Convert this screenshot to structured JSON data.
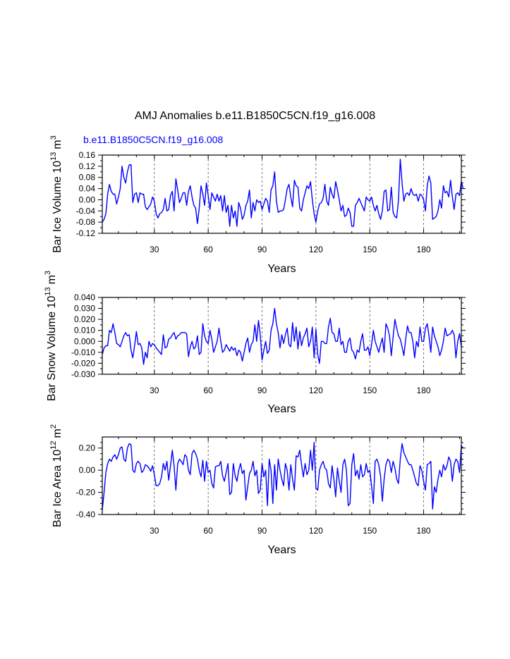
{
  "figure": {
    "title": "AMJ Anomalies b.e11.B1850C5CN.f19_g16.008",
    "subtitle": "b.e11.B1850C5CN.f19_g16.008",
    "line_color": "#0000ff",
    "grid_color": "#555555"
  },
  "chart_data": [
    {
      "type": "line",
      "title": "",
      "xlabel": "Years",
      "ylabel_main": "Bar Ice Volume 10",
      "ylabel_exp": "13",
      "ylabel_unit": "m",
      "ylabel_unit_exp": "3",
      "xlim": [
        1,
        201
      ],
      "ylim": [
        -0.12,
        0.16
      ],
      "xticks": [
        30,
        60,
        90,
        120,
        150,
        180
      ],
      "yticks": [
        -0.12,
        -0.08,
        -0.04,
        0.0,
        0.04,
        0.08,
        0.12,
        0.16
      ],
      "ytick_labels": [
        "-0.12",
        "-0.08",
        "-0.04",
        "0.00",
        "0.04",
        "0.08",
        "0.12",
        "0.16"
      ],
      "yminor": [
        -0.1,
        -0.06,
        -0.02,
        0.02,
        0.06,
        0.1,
        0.14
      ],
      "grid_x": [
        30,
        60,
        90,
        120,
        150,
        180
      ],
      "series": [
        {
          "name": "b.e11.B1850C5CN.f19_g16.008",
          "x_start": 1,
          "values": [
            -0.08,
            -0.07,
            -0.05,
            0.02,
            0.055,
            0.03,
            0.02,
            0.02,
            -0.015,
            0.01,
            0.04,
            0.12,
            0.08,
            0.06,
            0.1,
            0.125,
            0.125,
            -0.01,
            0.02,
            0.025,
            -0.01,
            0.025,
            0.02,
            0.02,
            -0.025,
            -0.035,
            -0.025,
            -0.015,
            0.01,
            -0.005,
            -0.05,
            -0.065,
            -0.05,
            -0.045,
            -0.035,
            0.005,
            -0.04,
            -0.035,
            0.015,
            0.03,
            -0.04,
            0.075,
            0.035,
            -0.01,
            0.005,
            0.025,
            0.025,
            -0.02,
            0.03,
            0.05,
            0.01,
            -0.02,
            -0.03,
            -0.085,
            -0.03,
            0.05,
            0.02,
            -0.02,
            0.06,
            0.015,
            -0.035,
            0.025,
            0.01,
            -0.005,
            0.02,
            -0.005,
            0.015,
            -0.04,
            0.015,
            -0.045,
            -0.02,
            -0.095,
            -0.02,
            -0.065,
            -0.04,
            -0.095,
            -0.01,
            -0.03,
            -0.07,
            -0.055,
            -0.02,
            -0.005,
            0.035,
            -0.065,
            -0.01,
            -0.04,
            0.0,
            -0.01,
            -0.005,
            -0.035,
            -0.015,
            0.005,
            -0.005,
            -0.045,
            0.035,
            0.05,
            0.1,
            -0.005,
            -0.045,
            -0.04,
            -0.04,
            -0.035,
            0.0,
            0.04,
            0.055,
            0.01,
            -0.025,
            0.07,
            0.05,
            0.045,
            -0.03,
            -0.04,
            0.0,
            0.025,
            0.05,
            0.04,
            0.065,
            0.0,
            -0.05,
            -0.08,
            -0.04,
            -0.015,
            -0.01,
            0.005,
            0.055,
            -0.005,
            -0.02,
            0.045,
            0.02,
            0.005,
            0.065,
            0.035,
            0.0,
            -0.04,
            -0.02,
            -0.06,
            -0.055,
            -0.03,
            -0.045,
            -0.095,
            -0.095,
            -0.02,
            -0.01,
            0.005,
            -0.01,
            -0.025,
            -0.04,
            0.01,
            0.0,
            -0.005,
            0.01,
            -0.02,
            -0.04,
            -0.02,
            -0.05,
            -0.07,
            -0.04,
            0.03,
            0.035,
            -0.04,
            -0.035,
            0.045,
            -0.045,
            -0.06,
            -0.065,
            0.0,
            0.145,
            0.06,
            -0.005,
            0.02,
            0.025,
            0.015,
            0.04,
            0.02,
            0.015,
            0.02,
            -0.005,
            0.02,
            0.015,
            0.0,
            -0.04,
            0.05,
            0.085,
            0.06,
            -0.07,
            -0.065,
            -0.06,
            -0.04,
            0.0,
            -0.03,
            0.05,
            0.025,
            0.03,
            0.01,
            0.07,
            0.01,
            -0.035,
            0.02,
            0.025,
            0.015,
            0.065,
            0.04
          ]
        }
      ]
    },
    {
      "type": "line",
      "title": "",
      "xlabel": "Years",
      "ylabel_main": "Bar Snow Volume 10",
      "ylabel_exp": "13",
      "ylabel_unit": "m",
      "ylabel_unit_exp": "3",
      "xlim": [
        1,
        201
      ],
      "ylim": [
        -0.03,
        0.04
      ],
      "xticks": [
        30,
        60,
        90,
        120,
        150,
        180
      ],
      "yticks": [
        -0.03,
        -0.02,
        -0.01,
        0.0,
        0.01,
        0.02,
        0.03,
        0.04
      ],
      "ytick_labels": [
        "-0.030",
        "-0.020",
        "-0.010",
        "0.000",
        "0.010",
        "0.020",
        "0.030",
        "0.040"
      ],
      "yminor": [
        -0.025,
        -0.015,
        -0.005,
        0.005,
        0.015,
        0.025,
        0.035
      ],
      "grid_x": [
        30,
        60,
        90,
        120,
        150,
        180
      ],
      "series": [
        {
          "name": "b.e11.B1850C5CN.f19_g16.008",
          "x_start": 1,
          "values": [
            -0.012,
            -0.006,
            -0.004,
            -0.004,
            0.01,
            0.008,
            0.016,
            0.008,
            -0.002,
            -0.003,
            -0.005,
            0.0,
            0.005,
            0.008,
            0.005,
            0.006,
            -0.008,
            -0.015,
            -0.004,
            0.009,
            -0.003,
            -0.002,
            -0.006,
            -0.021,
            -0.01,
            -0.015,
            0.0,
            -0.005,
            -0.002,
            -0.003,
            -0.006,
            -0.008,
            -0.01,
            -0.012,
            0.006,
            -0.006,
            -0.005,
            0.002,
            0.003,
            0.006,
            0.008,
            0.002,
            0.005,
            0.006,
            0.008,
            0.008,
            0.008,
            0.007,
            -0.014,
            -0.005,
            0.0,
            -0.007,
            -0.005,
            0.005,
            -0.012,
            -0.01,
            0.016,
            0.005,
            0.0,
            -0.002,
            0.01,
            0.002,
            -0.01,
            -0.005,
            0.0,
            0.012,
            0.0,
            -0.01,
            -0.008,
            -0.003,
            -0.006,
            -0.009,
            -0.005,
            -0.008,
            -0.006,
            -0.013,
            -0.008,
            -0.01,
            -0.018,
            -0.01,
            -0.002,
            0.003,
            -0.01,
            -0.003,
            0.0,
            0.015,
            0.0,
            0.019,
            0.006,
            -0.017,
            -0.008,
            0.0,
            -0.011,
            -0.008,
            0.01,
            0.016,
            0.03,
            0.016,
            0.008,
            -0.006,
            0.006,
            -0.002,
            0.006,
            0.012,
            -0.003,
            -0.005,
            0.017,
            0.0,
            0.013,
            -0.007,
            0.009,
            -0.004,
            0.003,
            0.007,
            0.012,
            -0.005,
            0.0,
            0.013,
            -0.015,
            0.011,
            -0.012,
            -0.02,
            0.0,
            0.0,
            -0.002,
            -0.002,
            0.013,
            0.021,
            0.008,
            0.007,
            0.0,
            0.0,
            0.012,
            -0.003,
            0.0,
            -0.01,
            -0.01,
            0.0,
            0.003,
            -0.008,
            -0.01,
            -0.016,
            -0.008,
            -0.01,
            0.0,
            0.007,
            -0.008,
            -0.008,
            -0.005,
            -0.013,
            -0.003,
            0.01,
            0.0,
            -0.005,
            -0.01,
            -0.003,
            0.003,
            -0.01,
            0.016,
            0.012,
            0.005,
            -0.013,
            0.004,
            0.02,
            0.012,
            0.005,
            0.002,
            -0.005,
            -0.013,
            0.002,
            0.014,
            0.008,
            0.008,
            0.0,
            -0.015,
            0.0,
            -0.005,
            0.013,
            0.0,
            0.0,
            0.012,
            0.016,
            0.005,
            -0.01,
            0.013,
            0.005,
            0.0,
            -0.005,
            -0.013,
            -0.008,
            0.0,
            0.012,
            0.005,
            0.006,
            0.007,
            0.01,
            0.006,
            -0.015,
            0.0,
            0.007,
            -0.005
          ]
        }
      ]
    },
    {
      "type": "line",
      "title": "",
      "xlabel": "Years",
      "ylabel_main": "Bar Ice Area 10",
      "ylabel_exp": "12",
      "ylabel_unit": "m",
      "ylabel_unit_exp": "2",
      "xlim": [
        1,
        201
      ],
      "ylim": [
        -0.4,
        0.3
      ],
      "xticks": [
        30,
        60,
        90,
        120,
        150,
        180
      ],
      "yticks": [
        -0.4,
        -0.2,
        0.0,
        0.2
      ],
      "ytick_labels": [
        "-0.40",
        "-0.20",
        "0.00",
        "0.20"
      ],
      "yminor": [
        -0.35,
        -0.3,
        -0.25,
        -0.15,
        -0.1,
        -0.05,
        0.05,
        0.1,
        0.15,
        0.25
      ],
      "grid_x": [
        30,
        60,
        90,
        120,
        150,
        180
      ],
      "series": [
        {
          "name": "b.e11.B1850C5CN.f19_g16.008",
          "x_start": 1,
          "values": [
            -0.36,
            -0.2,
            -0.02,
            0.06,
            0.1,
            0.08,
            0.12,
            0.14,
            0.1,
            0.14,
            0.2,
            0.21,
            0.1,
            0.08,
            0.2,
            0.24,
            0.23,
            0.0,
            -0.02,
            0.06,
            0.08,
            0.06,
            -0.02,
            0.0,
            0.05,
            0.04,
            0.02,
            -0.01,
            0.04,
            -0.04,
            -0.14,
            -0.14,
            -0.12,
            -0.06,
            0.06,
            0.0,
            0.08,
            -0.09,
            0.04,
            0.18,
            0.04,
            -0.18,
            0.06,
            0.1,
            0.08,
            0.05,
            0.14,
            0.12,
            0.0,
            -0.04,
            0.15,
            0.18,
            0.15,
            0.1,
            0.0,
            -0.06,
            0.09,
            -0.1,
            0.08,
            -0.02,
            0.0,
            -0.12,
            -0.16,
            0.03,
            0.04,
            0.04,
            0.08,
            -0.05,
            -0.1,
            -0.02,
            0.06,
            -0.22,
            -0.2,
            0.06,
            -0.05,
            -0.1,
            0.0,
            0.06,
            -0.03,
            0.0,
            -0.27,
            -0.15,
            -0.03,
            0.0,
            0.08,
            -0.05,
            0.0,
            -0.21,
            -0.18,
            0.06,
            -0.06,
            0.0,
            -0.32,
            0.1,
            0.0,
            -0.3,
            0.05,
            -0.18,
            0.1,
            0.0,
            -0.08,
            -0.14,
            0.06,
            0.0,
            -0.18,
            0.05,
            -0.08,
            -0.18,
            0.13,
            0.12,
            0.18,
            0.05,
            -0.06,
            0.06,
            -0.04,
            0.0,
            0.18,
            0.0,
            0.25,
            -0.16,
            -0.18,
            0.0,
            0.05,
            0.08,
            0.02,
            0.0,
            -0.12,
            -0.16,
            0.04,
            -0.08,
            -0.24,
            0.02,
            -0.1,
            -0.2,
            0.05,
            0.1,
            0.0,
            -0.32,
            -0.3,
            0.05,
            0.15,
            -0.05,
            0.0,
            -0.08,
            0.05,
            -0.06,
            -0.04,
            0.06,
            -0.02,
            0.0,
            -0.14,
            -0.3,
            0.08,
            0.1,
            0.05,
            -0.05,
            -0.28,
            -0.08,
            0.05,
            0.1,
            0.08,
            -0.02,
            0.08,
            0.02,
            -0.08,
            -0.12,
            0.1,
            0.24,
            0.16,
            0.12,
            0.08,
            0.05,
            0.05,
            0.0,
            -0.06,
            -0.12,
            -0.14,
            0.04,
            0.0,
            -0.1,
            -0.18,
            0.05,
            0.06,
            0.08,
            -0.35,
            -0.15,
            -0.2,
            -0.08,
            0.0,
            -0.06,
            0.05,
            0.0,
            0.04,
            0.12,
            0.08,
            -0.1,
            0.05,
            0.1,
            0.08,
            -0.02,
            0.22,
            0.2
          ]
        }
      ]
    }
  ]
}
